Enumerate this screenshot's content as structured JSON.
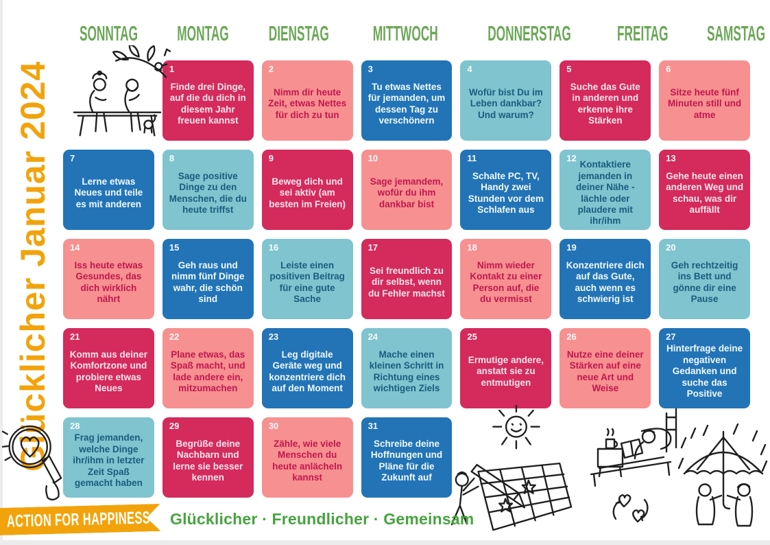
{
  "title": "Glücklicher Januar 2024",
  "weekdays": [
    "SONNTAG",
    "MONTAG",
    "DIENSTAG",
    "MITTWOCH",
    "DONNERSTAG",
    "FREITAG",
    "SAMSTAG"
  ],
  "days": [
    {
      "num": "1",
      "color": "crimson",
      "text": "Finde drei Dinge, auf die du dich in diesem Jahr freuen kannst"
    },
    {
      "num": "2",
      "color": "salmon",
      "text": "Nimm dir heute Zeit, etwas Nettes für dich zu tun"
    },
    {
      "num": "3",
      "color": "blue",
      "text": "Tu etwas Nettes für jemanden, um dessen Tag zu verschönern"
    },
    {
      "num": "4",
      "color": "teal",
      "text": "Wofür bist Du im Leben dankbar? Und warum?"
    },
    {
      "num": "5",
      "color": "crimson",
      "text": "Suche das Gute in anderen und erkenne ihre Stärken"
    },
    {
      "num": "6",
      "color": "salmon",
      "text": "Sitze heute fünf Minuten still und atme"
    },
    {
      "num": "7",
      "color": "blue",
      "text": "Lerne etwas Neues und teile es mit anderen"
    },
    {
      "num": "8",
      "color": "teal",
      "text": "Sage positive Dinge zu den Menschen, die du heute triffst"
    },
    {
      "num": "9",
      "color": "crimson",
      "text": "Beweg dich und sei aktiv (am besten im Freien)"
    },
    {
      "num": "10",
      "color": "salmon",
      "text": "Sage jemandem, wofür du ihm dankbar bist"
    },
    {
      "num": "11",
      "color": "blue",
      "text": "Schalte PC, TV, Handy zwei Stunden vor dem Schlafen aus"
    },
    {
      "num": "12",
      "color": "teal",
      "text": "Kontaktiere jemanden in deiner Nähe - lächle oder plaudere mit ihr/ihm"
    },
    {
      "num": "13",
      "color": "crimson",
      "text": "Gehe heute einen anderen Weg und schau, was dir auffällt"
    },
    {
      "num": "14",
      "color": "salmon",
      "text": "Iss heute etwas Gesundes, das dich wirklich nährt"
    },
    {
      "num": "15",
      "color": "blue",
      "text": "Geh raus und nimm fünf Dinge wahr, die schön sind"
    },
    {
      "num": "16",
      "color": "teal",
      "text": "Leiste einen positiven Beitrag für eine gute Sache"
    },
    {
      "num": "17",
      "color": "crimson",
      "text": "Sei freundlich zu dir selbst, wenn du Fehler machst"
    },
    {
      "num": "18",
      "color": "salmon",
      "text": "Nimm wieder Kontakt zu einer Person auf, die du vermisst"
    },
    {
      "num": "19",
      "color": "blue",
      "text": "Konzentriere dich auf das Gute, auch wenn es schwierig ist"
    },
    {
      "num": "20",
      "color": "teal",
      "text": "Geh rechtzeitig ins Bett und gönne dir eine Pause"
    },
    {
      "num": "21",
      "color": "crimson",
      "text": "Komm aus deiner Komfortzone und probiere etwas Neues"
    },
    {
      "num": "22",
      "color": "salmon",
      "text": "Plane etwas, das Spaß macht, und lade andere ein, mitzumachen"
    },
    {
      "num": "23",
      "color": "blue",
      "text": "Leg digitale Geräte weg und konzentriere dich auf den Moment"
    },
    {
      "num": "24",
      "color": "teal",
      "text": "Mache einen kleinen Schritt in Richtung eines wichtigen Ziels"
    },
    {
      "num": "25",
      "color": "crimson",
      "text": "Ermutige andere, anstatt sie zu entmutigen"
    },
    {
      "num": "26",
      "color": "salmon",
      "text": "Nutze eine deiner Stärken auf eine neue Art und Weise"
    },
    {
      "num": "27",
      "color": "blue",
      "text": "Hinterfrage deine negativen Gedanken und suche das Positive"
    },
    {
      "num": "28",
      "color": "teal",
      "text": "Frag jemanden, welche Dinge ihr/ihm in letzter Zeit Spaß gemacht haben"
    },
    {
      "num": "29",
      "color": "crimson",
      "text": "Begrüße deine Nachbarn und lerne sie besser kennen"
    },
    {
      "num": "30",
      "color": "salmon",
      "text": "Zähle, wie viele Menschen du heute anlächeln kannst"
    },
    {
      "num": "31",
      "color": "blue",
      "text": "Schreibe deine Hoffnungen und Pläne für die Zukunft auf"
    }
  ],
  "colors": {
    "theme": {
      "orange": "#F2A30B",
      "headerGreen": "#6BA757",
      "taglineGreen": "#47A33E",
      "edgeGray": "#ECECEC"
    },
    "tiles": {
      "crimson": {
        "bg": "#D42A5C",
        "text": "#FAE6EC",
        "num": "#FFFFFF"
      },
      "salmon": {
        "bg": "#F79090",
        "text": "#C0174E",
        "num": "#FFFFFF"
      },
      "blue": {
        "bg": "#2274B7",
        "text": "#F2F9FD",
        "num": "#FFFFFF"
      },
      "teal": {
        "bg": "#7FC4CF",
        "text": "#1A5C7E",
        "num": "#FFFFFF"
      }
    }
  },
  "footer": {
    "brand": "ACTION FOR HAPPINESS",
    "tagline": "Glücklicher · Freundlicher · Gemeinsam"
  },
  "illustrations": [
    "bench-chat-illustration",
    "magnifier-heart-illustration",
    "calendar-drawing-illustration",
    "reading-in-bed-illustration",
    "umbrella-couple-illustration"
  ]
}
